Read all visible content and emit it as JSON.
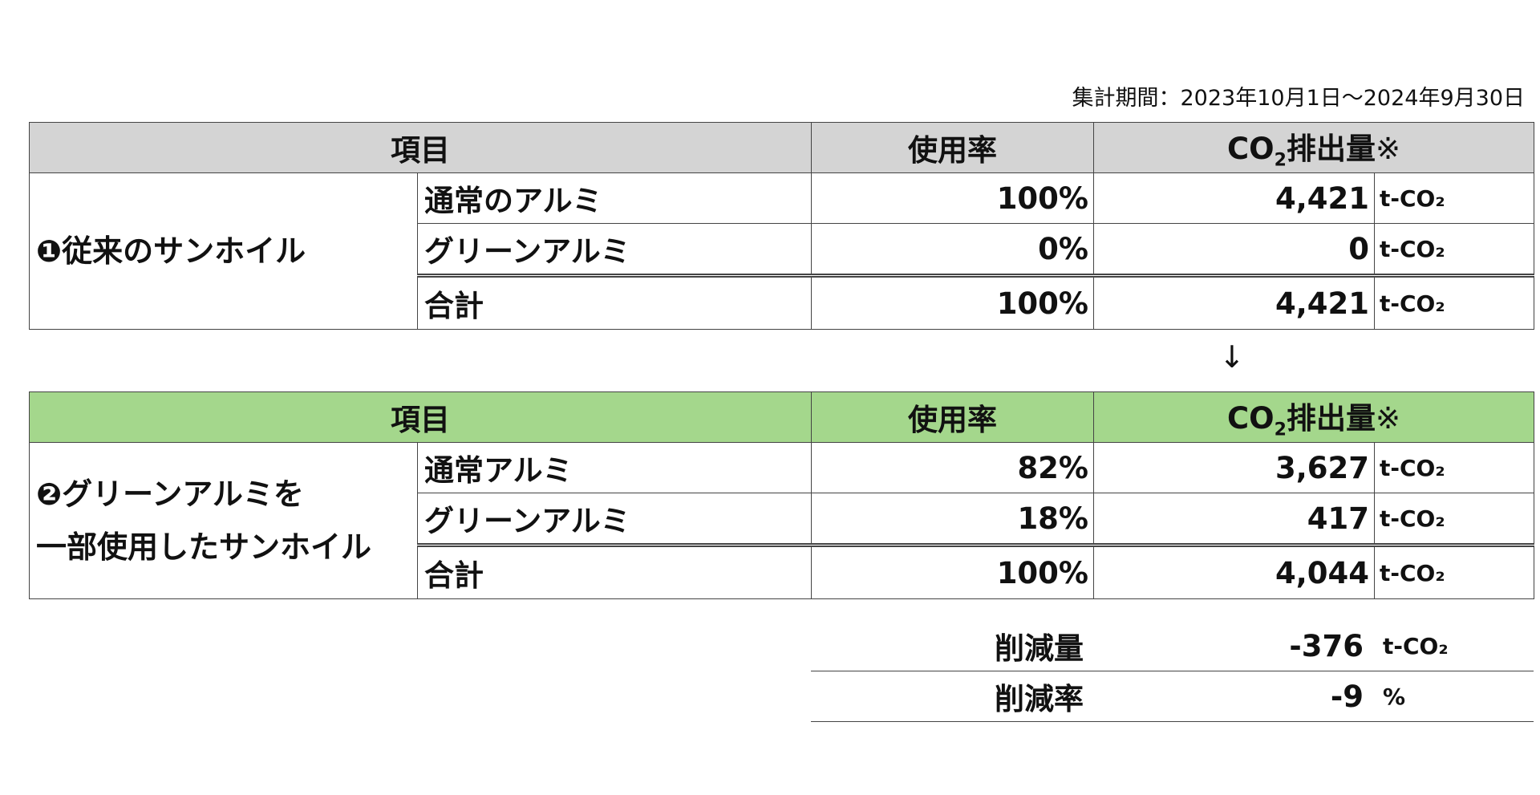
{
  "period_text": "集計期間：2023年10月1日～2024年9月30日",
  "headers": {
    "item": "項目",
    "rate": "使用率",
    "co2_prefix": "CO",
    "co2_sub": "2",
    "co2_suffix": "排出量",
    "note_mark": "※"
  },
  "unit": "t-CO₂",
  "table1": {
    "group_label": "❶従来のサンホイル",
    "rows": [
      {
        "name": "通常のアルミ",
        "rate": "100%",
        "value": "4,421"
      },
      {
        "name": "グリーンアルミ",
        "rate": "0%",
        "value": "0"
      },
      {
        "name": "合計",
        "rate": "100%",
        "value": "4,421"
      }
    ]
  },
  "arrow": "↓",
  "table2": {
    "group_label_line1": "❷グリーンアルミを",
    "group_label_line2": "一部使用したサンホイル",
    "rows": [
      {
        "name": "通常アルミ",
        "rate": "82%",
        "value": "3,627"
      },
      {
        "name": "グリーンアルミ",
        "rate": "18%",
        "value": "417"
      },
      {
        "name": "合計",
        "rate": "100%",
        "value": "4,044"
      }
    ]
  },
  "summary": {
    "reduction_label": "削減量",
    "reduction_value": "-376",
    "reduction_unit": "t-CO₂",
    "rate_label": "削減率",
    "rate_value": "-9",
    "rate_unit": "%"
  }
}
